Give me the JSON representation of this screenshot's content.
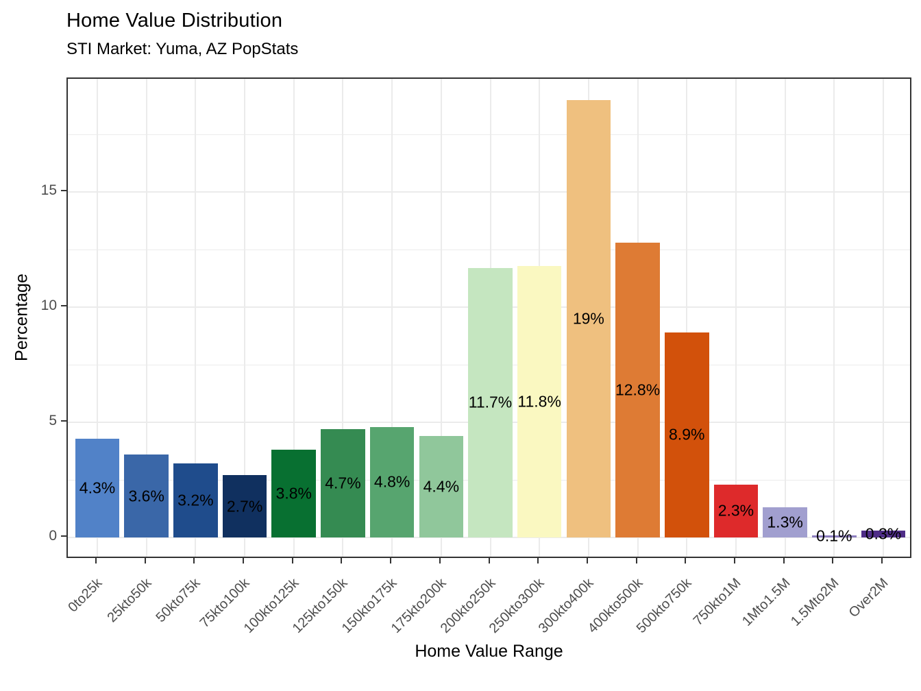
{
  "chart_data": {
    "type": "bar",
    "title": "Home Value Distribution",
    "subtitle": "STI Market: Yuma, AZ PopStats",
    "xlabel": "Home Value Range",
    "ylabel": "Percentage",
    "categories": [
      "0to25k",
      "25kto50k",
      "50kto75k",
      "75kto100k",
      "100kto125k",
      "125kto150k",
      "150kto175k",
      "175kto200k",
      "200kto250k",
      "250kto300k",
      "300kto400k",
      "400kto500k",
      "500kto750k",
      "750kto1M",
      "1Mto1.5M",
      "1.5Mto2M",
      "Over2M"
    ],
    "values": [
      4.3,
      3.6,
      3.2,
      2.7,
      3.8,
      4.7,
      4.8,
      4.4,
      11.7,
      11.8,
      19,
      12.8,
      8.9,
      2.3,
      1.3,
      0.1,
      0.3
    ],
    "bar_labels": [
      "4.3%",
      "3.6%",
      "3.2%",
      "2.7%",
      "3.8%",
      "4.7%",
      "4.8%",
      "4.4%",
      "11.7%",
      "11.8%",
      "19%",
      "12.8%",
      "8.9%",
      "2.3%",
      "1.3%",
      "0.1%",
      "0.3%"
    ],
    "bar_colors": [
      "#5182C8",
      "#3A67A8",
      "#1F4C8C",
      "#10305F",
      "#087031",
      "#358B52",
      "#57A56F",
      "#90C79B",
      "#C5E6C0",
      "#FAF8C1",
      "#EFC07F",
      "#DE7B34",
      "#D2510B",
      "#DE2A2B",
      "#A19FCF",
      "#8C7DBE",
      "#4F2D87"
    ],
    "yticks": [
      0,
      5,
      10,
      15
    ],
    "yticks_minor": [
      2.5,
      7.5,
      12.5,
      17.5
    ],
    "ylim": [
      -0.95,
      19.95
    ],
    "grid": "light gray horizontal major+minor, vertical at category centers",
    "legend": "none",
    "panel_border_color": "#333333",
    "gridline_color": "#ebebeb",
    "tick_label_color": "#4d4d4d",
    "text_color": "#000000"
  }
}
